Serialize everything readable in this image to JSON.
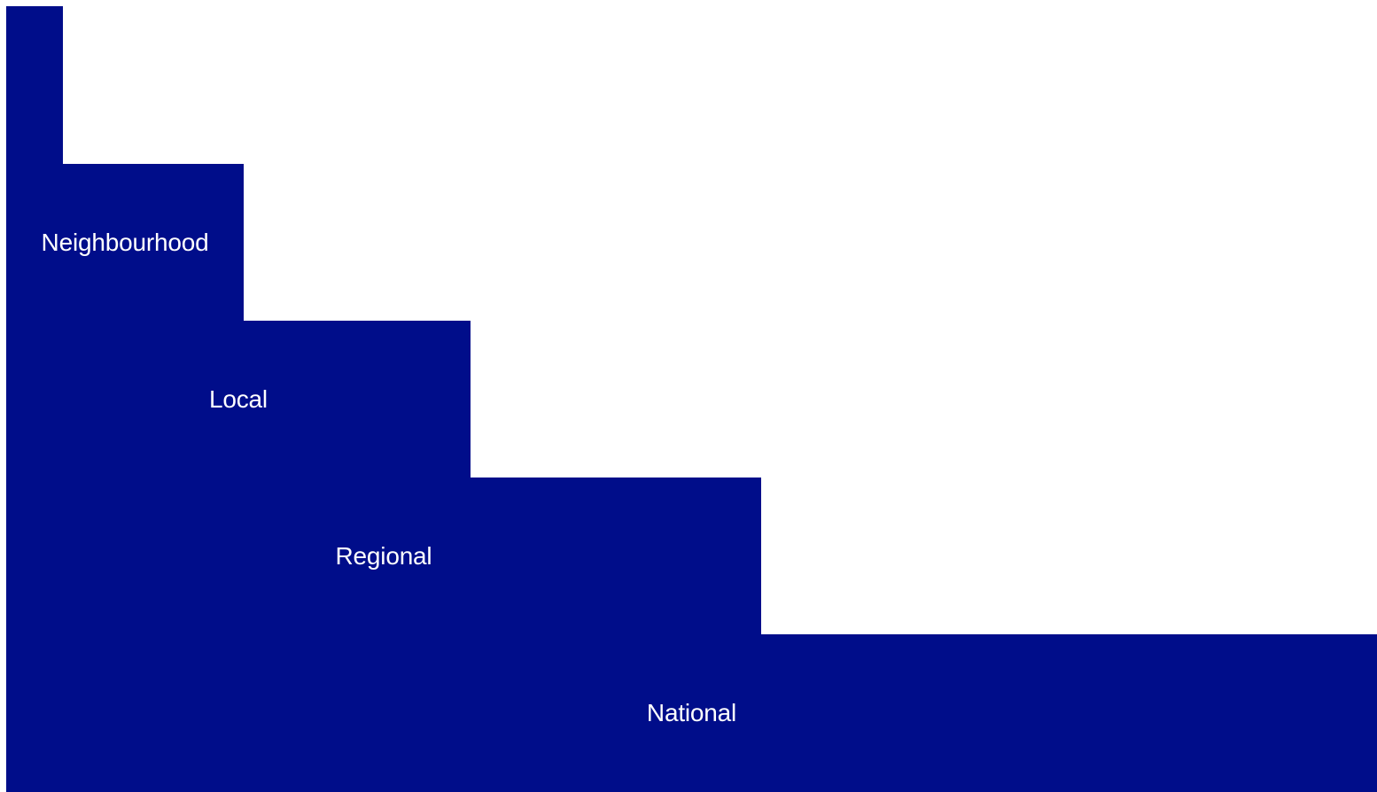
{
  "diagram": {
    "colors": {
      "bar": "#000d8a",
      "label": "#ffffff",
      "background": "#ffffff"
    },
    "levels": [
      {
        "label": ""
      },
      {
        "label": "Neighbourhood"
      },
      {
        "label": "Local"
      },
      {
        "label": "Regional"
      },
      {
        "label": "National"
      }
    ]
  }
}
